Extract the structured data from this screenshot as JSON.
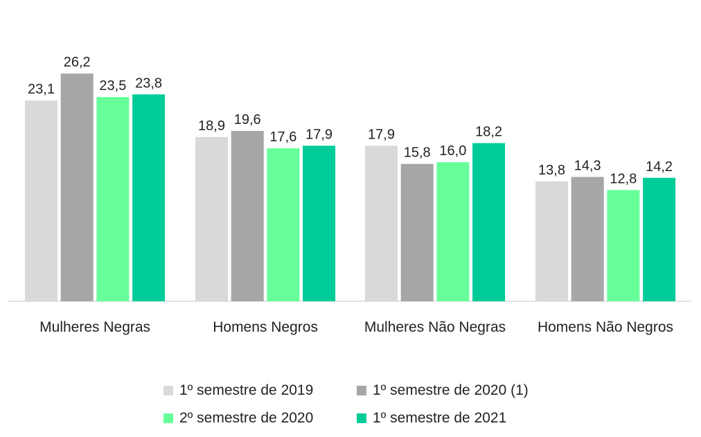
{
  "chart_data": {
    "type": "bar",
    "categories": [
      "Mulheres Negras",
      "Homens Negros",
      "Mulheres Não Negras",
      "Homens Não Negros"
    ],
    "series": [
      {
        "name": "1º semestre de 2019",
        "color": "#d9d9d9",
        "values": [
          23.1,
          18.9,
          17.9,
          13.8
        ],
        "labels": [
          "23,1",
          "18,9",
          "17,9",
          "13,8"
        ]
      },
      {
        "name": "1º semestre de 2020 (1)",
        "color": "#a6a6a6",
        "values": [
          26.2,
          19.6,
          15.8,
          14.3
        ],
        "labels": [
          "26,2",
          "19,6",
          "15,8",
          "14,3"
        ]
      },
      {
        "name": "2º semestre de 2020",
        "color": "#66ff99",
        "values": [
          23.5,
          17.6,
          16.0,
          12.8
        ],
        "labels": [
          "23,5",
          "17,6",
          "16,0",
          "12,8"
        ]
      },
      {
        "name": "1º semestre de 2021",
        "color": "#00cc99",
        "values": [
          23.8,
          17.9,
          18.2,
          14.2
        ],
        "labels": [
          "23,8",
          "17,9",
          "18,2",
          "14,2"
        ]
      }
    ],
    "ylim": [
      0,
      30
    ],
    "grid": false,
    "legend_position": "bottom"
  }
}
